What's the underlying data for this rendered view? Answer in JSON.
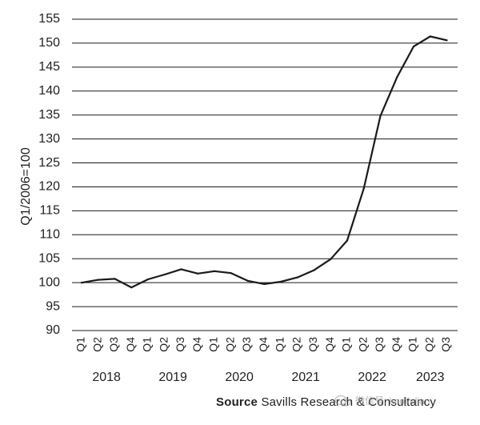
{
  "chart_data": {
    "type": "line",
    "title": "",
    "ylabel": "Q1/2006=100",
    "xlabel": "",
    "ylim": [
      90,
      155
    ],
    "yticks": [
      90,
      95,
      100,
      105,
      110,
      115,
      120,
      125,
      130,
      135,
      140,
      145,
      150,
      155
    ],
    "grid": true,
    "x": [
      "Q1",
      "Q2",
      "Q3",
      "Q4",
      "Q1",
      "Q2",
      "Q3",
      "Q4",
      "Q1",
      "Q2",
      "Q3",
      "Q4",
      "Q1",
      "Q2",
      "Q3",
      "Q4",
      "Q1",
      "Q2",
      "Q3",
      "Q4",
      "Q1",
      "Q2",
      "Q3"
    ],
    "year_groups": [
      {
        "year": "2018",
        "quarters": 4
      },
      {
        "year": "2019",
        "quarters": 4
      },
      {
        "year": "2020",
        "quarters": 4
      },
      {
        "year": "2021",
        "quarters": 4
      },
      {
        "year": "2022",
        "quarters": 4
      },
      {
        "year": "2023",
        "quarters": 3
      }
    ],
    "series": [
      {
        "values": [
          100.0,
          100.6,
          100.8,
          99.0,
          100.7,
          101.7,
          102.8,
          101.9,
          102.4,
          102.0,
          100.4,
          99.7,
          100.2,
          101.1,
          102.6,
          104.9,
          108.8,
          119.7,
          134.8,
          142.9,
          149.3,
          151.4,
          150.6
        ],
        "color": "#1a1a1a"
      }
    ]
  },
  "source": {
    "label": "Source",
    "text": "Savills Research & Consultancy"
  },
  "watermark": {
    "text": "微信号: kaoyulian"
  }
}
